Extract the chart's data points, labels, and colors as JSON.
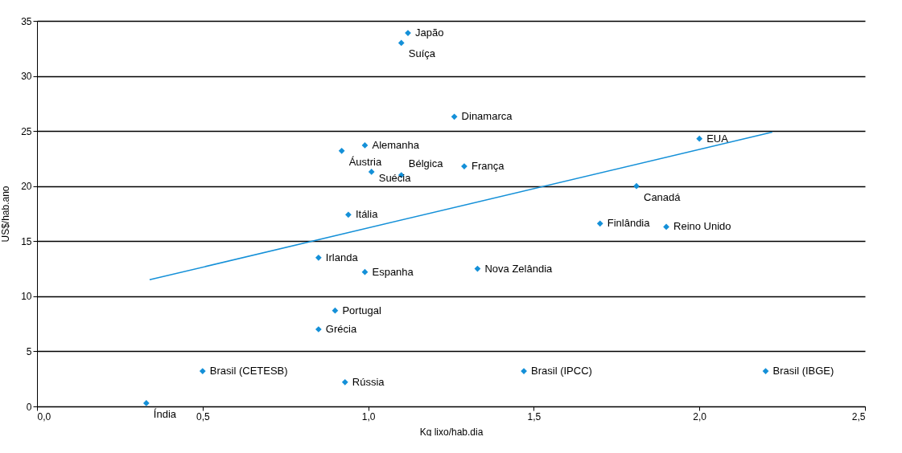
{
  "chart_data": {
    "type": "scatter",
    "xlabel": "Kg lixo/hab.dia",
    "ylabel": "US$/hab.ano",
    "xlim": [
      0,
      2.5
    ],
    "xticks": [
      {
        "value": 0,
        "label": "0,0"
      },
      {
        "value": 0.5,
        "label": "0,5"
      },
      {
        "value": 1,
        "label": "1,0"
      },
      {
        "value": 1.5,
        "label": "1,5"
      },
      {
        "value": 2,
        "label": "2,0"
      },
      {
        "value": 2.5,
        "label": "2,5"
      }
    ],
    "ylim": [
      0,
      35
    ],
    "yticks": [
      0,
      5,
      10,
      15,
      20,
      25,
      30,
      35
    ],
    "grid": "y",
    "marker": "diamond",
    "series": [
      {
        "color": "#1490d8",
        "x": [
          1.12,
          1.1,
          1.26,
          2.0,
          0.99,
          0.92,
          1.29,
          1.01,
          1.1,
          1.81,
          0.94,
          1.7,
          1.9,
          0.85,
          0.99,
          1.33,
          0.9,
          0.85,
          0.5,
          0.93,
          1.47,
          2.2,
          0.33
        ],
        "values": [
          33.9,
          33.0,
          26.3,
          24.3,
          23.7,
          23.2,
          21.8,
          21.3,
          21.0,
          20.0,
          17.4,
          16.6,
          16.3,
          13.5,
          12.2,
          12.5,
          8.7,
          7.0,
          3.2,
          2.2,
          3.2,
          3.2,
          0.3
        ]
      },
      {
        "type": "line",
        "marker": "none",
        "color": "#1490d8",
        "x": [
          0.34,
          2.22
        ],
        "values": [
          11.5,
          24.9
        ]
      }
    ],
    "annotations": [
      {
        "text": "Japão",
        "x": 1.12,
        "y": 33.9
      },
      {
        "text": "Suíça",
        "x": 1.1,
        "y": 33.0
      },
      {
        "text": "Dinamarca",
        "x": 1.26,
        "y": 26.3
      },
      {
        "text": "EUA",
        "x": 2.0,
        "y": 24.3
      },
      {
        "text": "Alemanha",
        "x": 0.99,
        "y": 23.7
      },
      {
        "text": "Áustria",
        "x": 0.92,
        "y": 23.2
      },
      {
        "text": "França",
        "x": 1.29,
        "y": 21.8
      },
      {
        "text": "Suécia",
        "x": 1.01,
        "y": 21.3
      },
      {
        "text": "Bélgica",
        "x": 1.1,
        "y": 21.0
      },
      {
        "text": "Canadá",
        "x": 1.81,
        "y": 20.0
      },
      {
        "text": "Itália",
        "x": 0.94,
        "y": 17.4
      },
      {
        "text": "Finlândia",
        "x": 1.7,
        "y": 16.6
      },
      {
        "text": "Reino Unido",
        "x": 1.9,
        "y": 16.3
      },
      {
        "text": "Irlanda",
        "x": 0.85,
        "y": 13.5
      },
      {
        "text": "Espanha",
        "x": 0.99,
        "y": 12.2
      },
      {
        "text": "Nova Zelândia",
        "x": 1.33,
        "y": 12.5
      },
      {
        "text": "Portugal",
        "x": 0.9,
        "y": 8.7
      },
      {
        "text": "Grécia",
        "x": 0.85,
        "y": 7.0
      },
      {
        "text": "Brasil (CETESB)",
        "x": 0.5,
        "y": 3.2
      },
      {
        "text": "Rússia",
        "x": 0.93,
        "y": 2.2
      },
      {
        "text": "Brasil (IPCC)",
        "x": 1.47,
        "y": 3.2
      },
      {
        "text": "Brasil (IBGE)",
        "x": 2.2,
        "y": 3.2
      },
      {
        "text": "Índia",
        "x": 0.33,
        "y": 0.3
      }
    ]
  }
}
